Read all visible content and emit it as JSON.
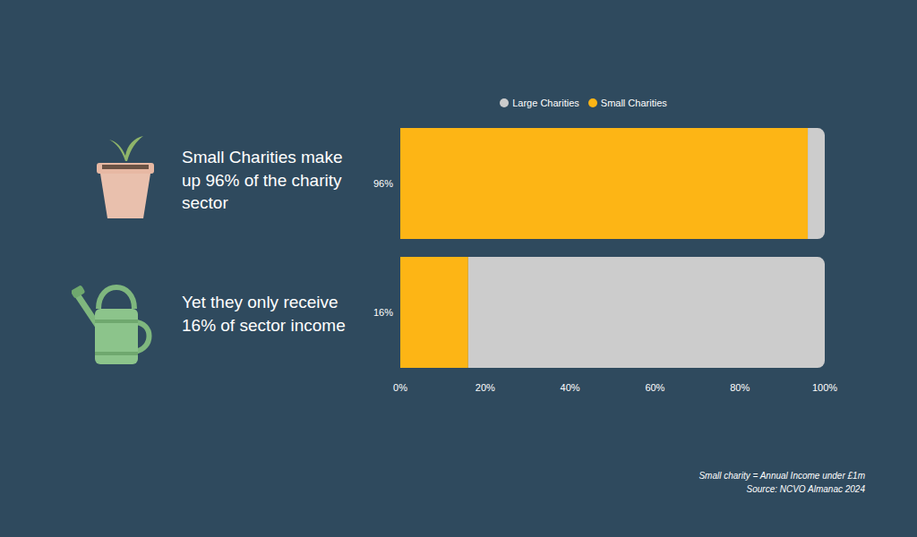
{
  "chart_data": {
    "type": "bar",
    "orientation": "horizontal",
    "stacked": true,
    "categories": [
      "96%",
      "16%"
    ],
    "series": [
      {
        "name": "Small Charities",
        "color": "#fdb515",
        "values": [
          96,
          16
        ]
      },
      {
        "name": "Large Charities",
        "color": "#cccccc",
        "values": [
          4,
          84
        ]
      }
    ],
    "xlim": [
      0,
      100
    ],
    "xticks": [
      {
        "value": 0,
        "label": "0%"
      },
      {
        "value": 20,
        "label": "20%"
      },
      {
        "value": 40,
        "label": "40%"
      },
      {
        "value": 60,
        "label": "60%"
      },
      {
        "value": 80,
        "label": "80%"
      },
      {
        "value": 100,
        "label": "100%"
      }
    ],
    "legend": "top",
    "annotations": [
      "Small Charities make up 96% of the charity sector",
      "Yet they only receive 16% of sector income"
    ],
    "footnotes": [
      "Small charity = Annual Income under £1m",
      "Source: NCVO Almanac 2024"
    ]
  }
}
